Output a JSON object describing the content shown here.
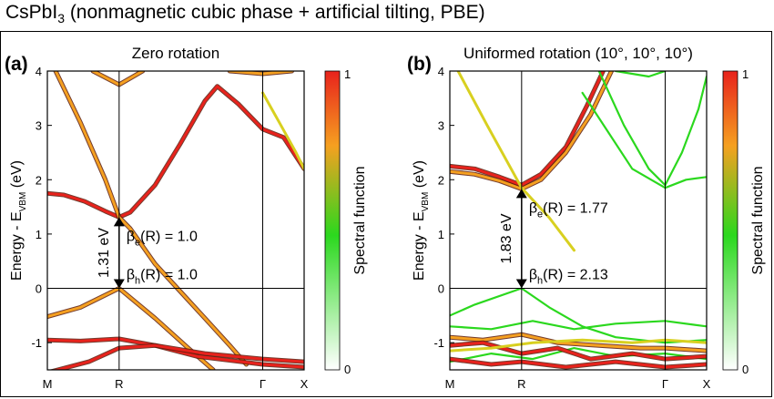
{
  "title": {
    "main": "CsPbI",
    "sub": "3",
    "rest": " (nonmagnetic cubic phase + artificial tilting, PBE)"
  },
  "colors": {
    "red": "#e8221c",
    "orange": "#f5a020",
    "yellow": "#d8d020",
    "green": "#2bd81e",
    "white": "#ffffff",
    "dark": "#5a1a0a"
  },
  "chart_data": [
    {
      "type": "line",
      "panel_label": "(a)",
      "title": "Zero rotation",
      "ylabel": {
        "pre": "Energy - E",
        "sub": "VBM",
        "post": " (eV)"
      },
      "ylim": [
        -1.5,
        4
      ],
      "yticks": [
        -1,
        0,
        1,
        2,
        3,
        4
      ],
      "ytick_labels": [
        "-1",
        "0",
        "1",
        "2",
        "3",
        "4"
      ],
      "kpoints": [
        {
          "label": "M",
          "x": 0
        },
        {
          "label": "R",
          "x": 0.866
        },
        {
          "label": "Γ",
          "x": 2.598
        },
        {
          "label": "X",
          "x": 3.098
        }
      ],
      "series": [
        {
          "color": "red",
          "points": [
            [
              0,
              1.75
            ],
            [
              0.2,
              1.72
            ],
            [
              0.45,
              1.6
            ],
            [
              0.7,
              1.42
            ],
            [
              0.866,
              1.31
            ],
            [
              1.0,
              1.4
            ],
            [
              1.3,
              1.9
            ],
            [
              1.6,
              2.65
            ],
            [
              1.9,
              3.45
            ],
            [
              2.05,
              3.72
            ],
            [
              2.3,
              3.4
            ],
            [
              2.598,
              2.93
            ],
            [
              2.85,
              2.78
            ],
            [
              3.098,
              2.2
            ]
          ]
        },
        {
          "color": "orange",
          "points": [
            [
              0.1,
              4.0
            ],
            [
              0.4,
              3.05
            ],
            [
              0.7,
              2.0
            ],
            [
              0.866,
              1.31
            ],
            [
              1.0,
              1.1
            ],
            [
              1.3,
              0.45
            ],
            [
              1.6,
              -0.05
            ],
            [
              1.9,
              -0.55
            ],
            [
              2.2,
              -1.05
            ],
            [
              2.4,
              -1.4
            ]
          ]
        },
        {
          "color": "orange",
          "points": [
            [
              0.55,
              4.0
            ],
            [
              0.866,
              3.75
            ],
            [
              1.15,
              4.0
            ]
          ]
        },
        {
          "color": "orange",
          "points": [
            [
              2.2,
              4.0
            ],
            [
              2.598,
              3.95
            ],
            [
              2.95,
              4.0
            ]
          ]
        },
        {
          "color": "orange",
          "points": [
            [
              0,
              -0.52
            ],
            [
              0.4,
              -0.35
            ],
            [
              0.866,
              0.0
            ],
            [
              1.3,
              -0.55
            ],
            [
              1.7,
              -1.1
            ],
            [
              2.0,
              -1.5
            ]
          ]
        },
        {
          "color": "red",
          "points": [
            [
              0,
              -0.95
            ],
            [
              0.4,
              -0.97
            ],
            [
              0.866,
              -0.93
            ],
            [
              1.3,
              -1.05
            ],
            [
              1.8,
              -1.25
            ],
            [
              2.598,
              -1.4
            ],
            [
              3.098,
              -1.45
            ]
          ]
        },
        {
          "color": "red",
          "points": [
            [
              0,
              -1.55
            ],
            [
              0.5,
              -1.35
            ],
            [
              0.866,
              -1.1
            ],
            [
              1.3,
              -1.05
            ],
            [
              1.9,
              -1.2
            ],
            [
              2.598,
              -1.3
            ],
            [
              3.098,
              -1.35
            ]
          ]
        },
        {
          "color": "yellow",
          "points": [
            [
              2.598,
              3.6
            ],
            [
              2.8,
              3.05
            ],
            [
              3.0,
              2.5
            ],
            [
              3.098,
              2.2
            ]
          ]
        }
      ],
      "arrow": {
        "x": 0.866,
        "y_from": 0.0,
        "y_to": 1.31
      },
      "gap_label": "1.31 eV",
      "beta_e": {
        "pre": "β",
        "sub": "e",
        "post": "(R) = 1.0"
      },
      "beta_h": {
        "pre": "β",
        "sub": "h",
        "post": "(R) = 1.0"
      },
      "colorbar": {
        "label": "Spectral function",
        "max_label": "1",
        "min_label": "0"
      }
    },
    {
      "type": "line",
      "panel_label": "(b)",
      "title": "Uniformed rotation (10°, 10°, 10°)",
      "ylabel": {
        "pre": "Energy - E",
        "sub": "VBM",
        "post": " (eV)"
      },
      "ylim": [
        -1.5,
        4
      ],
      "yticks": [
        -1,
        0,
        1,
        2,
        3,
        4
      ],
      "ytick_labels": [
        "-1",
        "0",
        "1",
        "2",
        "3",
        "4"
      ],
      "kpoints": [
        {
          "label": "M",
          "x": 0
        },
        {
          "label": "R",
          "x": 0.866
        },
        {
          "label": "Γ",
          "x": 2.598
        },
        {
          "label": "X",
          "x": 3.098
        }
      ],
      "series": [
        {
          "color": "red",
          "points": [
            [
              0,
              2.25
            ],
            [
              0.3,
              2.2
            ],
            [
              0.6,
              2.05
            ],
            [
              0.866,
              1.9
            ],
            [
              1.1,
              2.1
            ],
            [
              1.4,
              2.6
            ],
            [
              1.65,
              3.35
            ],
            [
              1.85,
              4.0
            ]
          ]
        },
        {
          "color": "orange",
          "points": [
            [
              0,
              2.15
            ],
            [
              0.3,
              2.1
            ],
            [
              0.6,
              1.98
            ],
            [
              0.866,
              1.83
            ],
            [
              1.1,
              2.0
            ],
            [
              1.4,
              2.5
            ],
            [
              1.7,
              3.2
            ],
            [
              1.95,
              4.0
            ]
          ]
        },
        {
          "color": "yellow",
          "points": [
            [
              0.1,
              4.0
            ],
            [
              0.45,
              3.0
            ],
            [
              0.866,
              1.85
            ],
            [
              1.2,
              1.3
            ],
            [
              1.5,
              0.7
            ]
          ]
        },
        {
          "color": "green",
          "points": [
            [
              1.6,
              3.6
            ],
            [
              1.9,
              2.9
            ],
            [
              2.2,
              2.2
            ],
            [
              2.598,
              1.85
            ],
            [
              2.85,
              2.0
            ],
            [
              3.098,
              2.05
            ]
          ]
        },
        {
          "color": "green",
          "points": [
            [
              1.8,
              4.0
            ],
            [
              2.1,
              3.0
            ],
            [
              2.4,
              2.2
            ],
            [
              2.598,
              1.9
            ]
          ]
        },
        {
          "color": "green",
          "points": [
            [
              2.598,
              1.9
            ],
            [
              2.8,
              2.5
            ],
            [
              3.0,
              3.3
            ],
            [
              3.098,
              3.9
            ]
          ]
        },
        {
          "color": "green",
          "points": [
            [
              2.0,
              4.0
            ],
            [
              2.4,
              3.9
            ],
            [
              2.598,
              4.0
            ]
          ]
        },
        {
          "color": "green",
          "points": [
            [
              0,
              -0.5
            ],
            [
              0.3,
              -0.3
            ],
            [
              0.866,
              0.0
            ],
            [
              1.2,
              -0.35
            ],
            [
              1.6,
              -0.7
            ],
            [
              2.0,
              -0.9
            ],
            [
              2.598,
              -1.0
            ],
            [
              3.098,
              -0.95
            ]
          ]
        },
        {
          "color": "green",
          "points": [
            [
              0,
              -0.7
            ],
            [
              0.5,
              -0.75
            ],
            [
              1.0,
              -0.6
            ],
            [
              1.5,
              -0.75
            ],
            [
              2.0,
              -0.65
            ],
            [
              2.598,
              -0.6
            ],
            [
              3.098,
              -0.7
            ]
          ]
        },
        {
          "color": "green",
          "points": [
            [
              0,
              -1.35
            ],
            [
              0.5,
              -1.2
            ],
            [
              1.0,
              -1.3
            ],
            [
              1.5,
              -1.1
            ],
            [
              2.0,
              -1.25
            ],
            [
              2.598,
              -1.2
            ],
            [
              3.098,
              -1.3
            ]
          ]
        },
        {
          "color": "orange",
          "points": [
            [
              0,
              -0.9
            ],
            [
              0.4,
              -0.95
            ],
            [
              0.866,
              -0.85
            ],
            [
              1.3,
              -1.0
            ],
            [
              1.8,
              -1.05
            ],
            [
              2.3,
              -1.1
            ],
            [
              2.598,
              -1.1
            ],
            [
              3.098,
              -1.15
            ]
          ]
        },
        {
          "color": "red",
          "points": [
            [
              0,
              -1.05
            ],
            [
              0.4,
              -1.0
            ],
            [
              0.866,
              -1.2
            ],
            [
              1.3,
              -1.1
            ],
            [
              1.7,
              -1.3
            ],
            [
              2.2,
              -1.2
            ],
            [
              2.598,
              -1.3
            ],
            [
              3.098,
              -1.25
            ]
          ]
        },
        {
          "color": "red",
          "points": [
            [
              0,
              -1.3
            ],
            [
              0.5,
              -1.4
            ],
            [
              0.866,
              -1.35
            ],
            [
              1.4,
              -1.45
            ],
            [
              2.0,
              -1.35
            ],
            [
              2.598,
              -1.45
            ],
            [
              3.098,
              -1.4
            ]
          ]
        },
        {
          "color": "yellow",
          "points": [
            [
              0,
              -1.15
            ],
            [
              0.5,
              -1.1
            ],
            [
              1.0,
              -1.0
            ],
            [
              1.6,
              -0.95
            ],
            [
              2.2,
              -1.0
            ],
            [
              2.598,
              -0.95
            ],
            [
              3.098,
              -1.0
            ]
          ]
        }
      ],
      "arrow": {
        "x": 0.866,
        "y_from": 0.0,
        "y_to": 1.83
      },
      "gap_label": "1.83 eV",
      "beta_e": {
        "pre": "β",
        "sub": "e",
        "post": "(R) = 1.77"
      },
      "beta_h": {
        "pre": "β",
        "sub": "h",
        "post": "(R) = 2.13"
      },
      "colorbar": {
        "label": "Spectral function",
        "max_label": "1",
        "min_label": "0"
      }
    }
  ]
}
